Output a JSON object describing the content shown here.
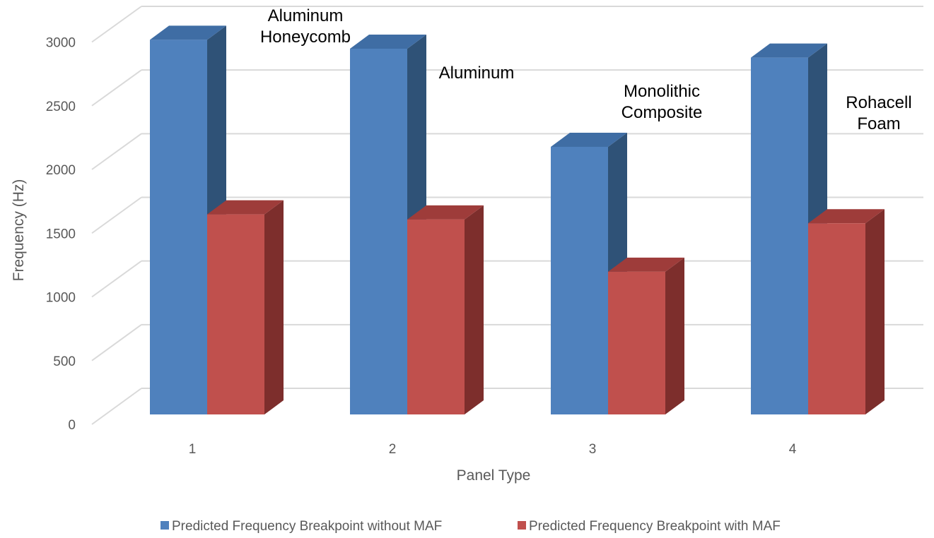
{
  "chart_data": {
    "type": "bar",
    "subtype": "3d-clustered-column",
    "categories": [
      "1",
      "2",
      "3",
      "4"
    ],
    "series": [
      {
        "name": "Predicted Frequency Breakpoint without MAF",
        "values": [
          2940,
          2870,
          2100,
          2800
        ],
        "color": "#4F81BD",
        "side_color": "#2F5277",
        "top_color": "#3F6DA4"
      },
      {
        "name": "Predicted Frequency Breakpoint with MAF",
        "values": [
          1570,
          1530,
          1120,
          1500
        ],
        "color": "#C0504D",
        "side_color": "#7D2E2C",
        "top_color": "#9E3C3A"
      }
    ],
    "annotations": [
      {
        "category": "1",
        "lines": [
          "Aluminum",
          "Honeycomb"
        ]
      },
      {
        "category": "2",
        "lines": [
          "Aluminum"
        ]
      },
      {
        "category": "3",
        "lines": [
          "Monolithic",
          "Composite"
        ]
      },
      {
        "category": "4",
        "lines": [
          "Rohacell",
          "Foam"
        ]
      }
    ],
    "y_ticks": [
      "0",
      "500",
      "1000",
      "1500",
      "2000",
      "2500",
      "3000"
    ],
    "xlabel": "Panel Type",
    "ylabel": "Frequency (Hz)",
    "ylim": [
      0,
      3000
    ],
    "grid": true,
    "legend_position": "bottom"
  }
}
